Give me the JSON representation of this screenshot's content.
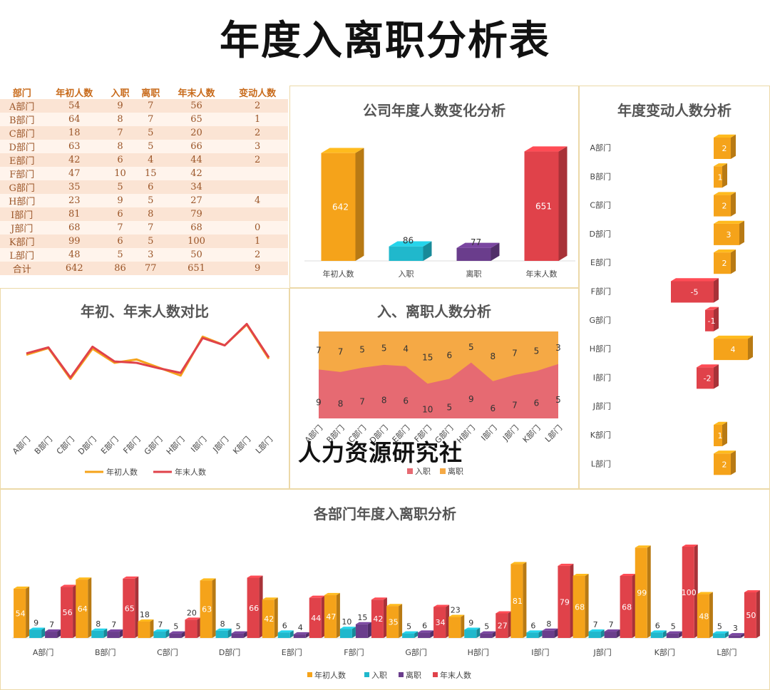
{
  "page": {
    "title": "年度入离职分析表",
    "watermark": "人力资源研究社"
  },
  "table": {
    "headers": [
      "部门",
      "年初人数",
      "入职",
      "离职",
      "年末人数",
      "变动人数"
    ],
    "rows": [
      [
        "A部门",
        "54",
        "9",
        "7",
        "56",
        "2"
      ],
      [
        "B部门",
        "64",
        "8",
        "7",
        "65",
        "1"
      ],
      [
        "C部门",
        "18",
        "7",
        "5",
        "20",
        "2"
      ],
      [
        "D部门",
        "63",
        "8",
        "5",
        "66",
        "3"
      ],
      [
        "E部门",
        "42",
        "6",
        "4",
        "44",
        "2"
      ],
      [
        "F部门",
        "47",
        "10",
        "15",
        "42",
        ""
      ],
      [
        "G部门",
        "35",
        "5",
        "6",
        "34",
        ""
      ],
      [
        "H部门",
        "23",
        "9",
        "5",
        "27",
        "4"
      ],
      [
        "I部门",
        "81",
        "6",
        "8",
        "79",
        ""
      ],
      [
        "J部门",
        "68",
        "7",
        "7",
        "68",
        "0"
      ],
      [
        "K部门",
        "99",
        "6",
        "5",
        "100",
        "1"
      ],
      [
        "L部门",
        "48",
        "5",
        "3",
        "50",
        "2"
      ],
      [
        "合计",
        "642",
        "86",
        "77",
        "651",
        "9"
      ]
    ]
  },
  "colors": {
    "orange": "#f5a31a",
    "teal": "#20b8cc",
    "purple": "#6a3d8c",
    "red": "#e0424a",
    "red_light": "#e66a72",
    "border": "#ecd9a8"
  },
  "chart_data": [
    {
      "id": "company",
      "type": "bar",
      "title": "公司年度人数变化分析",
      "categories": [
        "年初人数",
        "入职",
        "离职",
        "年末人数"
      ],
      "values": [
        642,
        86,
        77,
        651
      ],
      "colors": [
        "#f5a31a",
        "#20b8cc",
        "#6a3d8c",
        "#e0424a"
      ],
      "ylim": [
        0,
        700
      ]
    },
    {
      "id": "change",
      "type": "bar",
      "orientation": "horizontal",
      "title": "年度变动人数分析",
      "categories": [
        "A部门",
        "B部门",
        "C部门",
        "D部门",
        "E部门",
        "F部门",
        "G部门",
        "H部门",
        "I部门",
        "J部门",
        "K部门",
        "L部门"
      ],
      "values": [
        2,
        1,
        2,
        3,
        2,
        -5,
        -1,
        4,
        -2,
        0,
        1,
        2
      ],
      "xlim": [
        -6,
        6
      ]
    },
    {
      "id": "compare",
      "type": "line",
      "title": "年初、年末人数对比",
      "categories": [
        "A部门",
        "B部门",
        "C部门",
        "D部门",
        "E部门",
        "F部门",
        "G部门",
        "H部门",
        "I部门",
        "J部门",
        "K部门",
        "L部门"
      ],
      "series": [
        {
          "name": "年初人数",
          "values": [
            54,
            64,
            18,
            63,
            42,
            47,
            35,
            23,
            81,
            68,
            99,
            48
          ],
          "color": "#f5a31a"
        },
        {
          "name": "年末人数",
          "values": [
            56,
            65,
            20,
            66,
            44,
            42,
            34,
            27,
            79,
            68,
            100,
            50
          ],
          "color": "#e0424a"
        }
      ],
      "ylim": [
        -60,
        110
      ]
    },
    {
      "id": "inout",
      "type": "area",
      "stacked": true,
      "title": "入、离职人数分析",
      "categories": [
        "A部门",
        "B部门",
        "C部门",
        "D部门",
        "E部门",
        "F部门",
        "G部门",
        "H部门",
        "I部门",
        "J部门",
        "K部门",
        "L部门"
      ],
      "series": [
        {
          "name": "入职",
          "values": [
            9,
            8,
            7,
            8,
            6,
            10,
            5,
            9,
            6,
            7,
            6,
            5
          ],
          "color": "#e66a72"
        },
        {
          "name": "离职",
          "values": [
            7,
            7,
            5,
            5,
            4,
            15,
            6,
            5,
            8,
            7,
            5,
            3
          ],
          "color": "#f5a945"
        }
      ],
      "mode": "percent"
    },
    {
      "id": "dept",
      "type": "bar",
      "title": "各部门年度入离职分析",
      "categories": [
        "A部门",
        "B部门",
        "C部门",
        "D部门",
        "E部门",
        "F部门",
        "G部门",
        "H部门",
        "I部门",
        "J部门",
        "K部门",
        "L部门"
      ],
      "series": [
        {
          "name": "年初人数",
          "values": [
            54,
            64,
            18,
            63,
            42,
            47,
            35,
            23,
            81,
            68,
            99,
            48
          ],
          "color": "#f5a31a"
        },
        {
          "name": "入职",
          "values": [
            9,
            8,
            7,
            8,
            6,
            10,
            5,
            9,
            6,
            7,
            6,
            5
          ],
          "color": "#20b8cc"
        },
        {
          "name": "离职",
          "values": [
            7,
            7,
            5,
            5,
            4,
            15,
            6,
            5,
            8,
            7,
            5,
            3
          ],
          "color": "#6a3d8c"
        },
        {
          "name": "年末人数",
          "values": [
            56,
            65,
            20,
            66,
            44,
            42,
            34,
            27,
            79,
            68,
            100,
            50
          ],
          "color": "#e0424a"
        }
      ],
      "ylim": [
        0,
        100
      ]
    }
  ]
}
